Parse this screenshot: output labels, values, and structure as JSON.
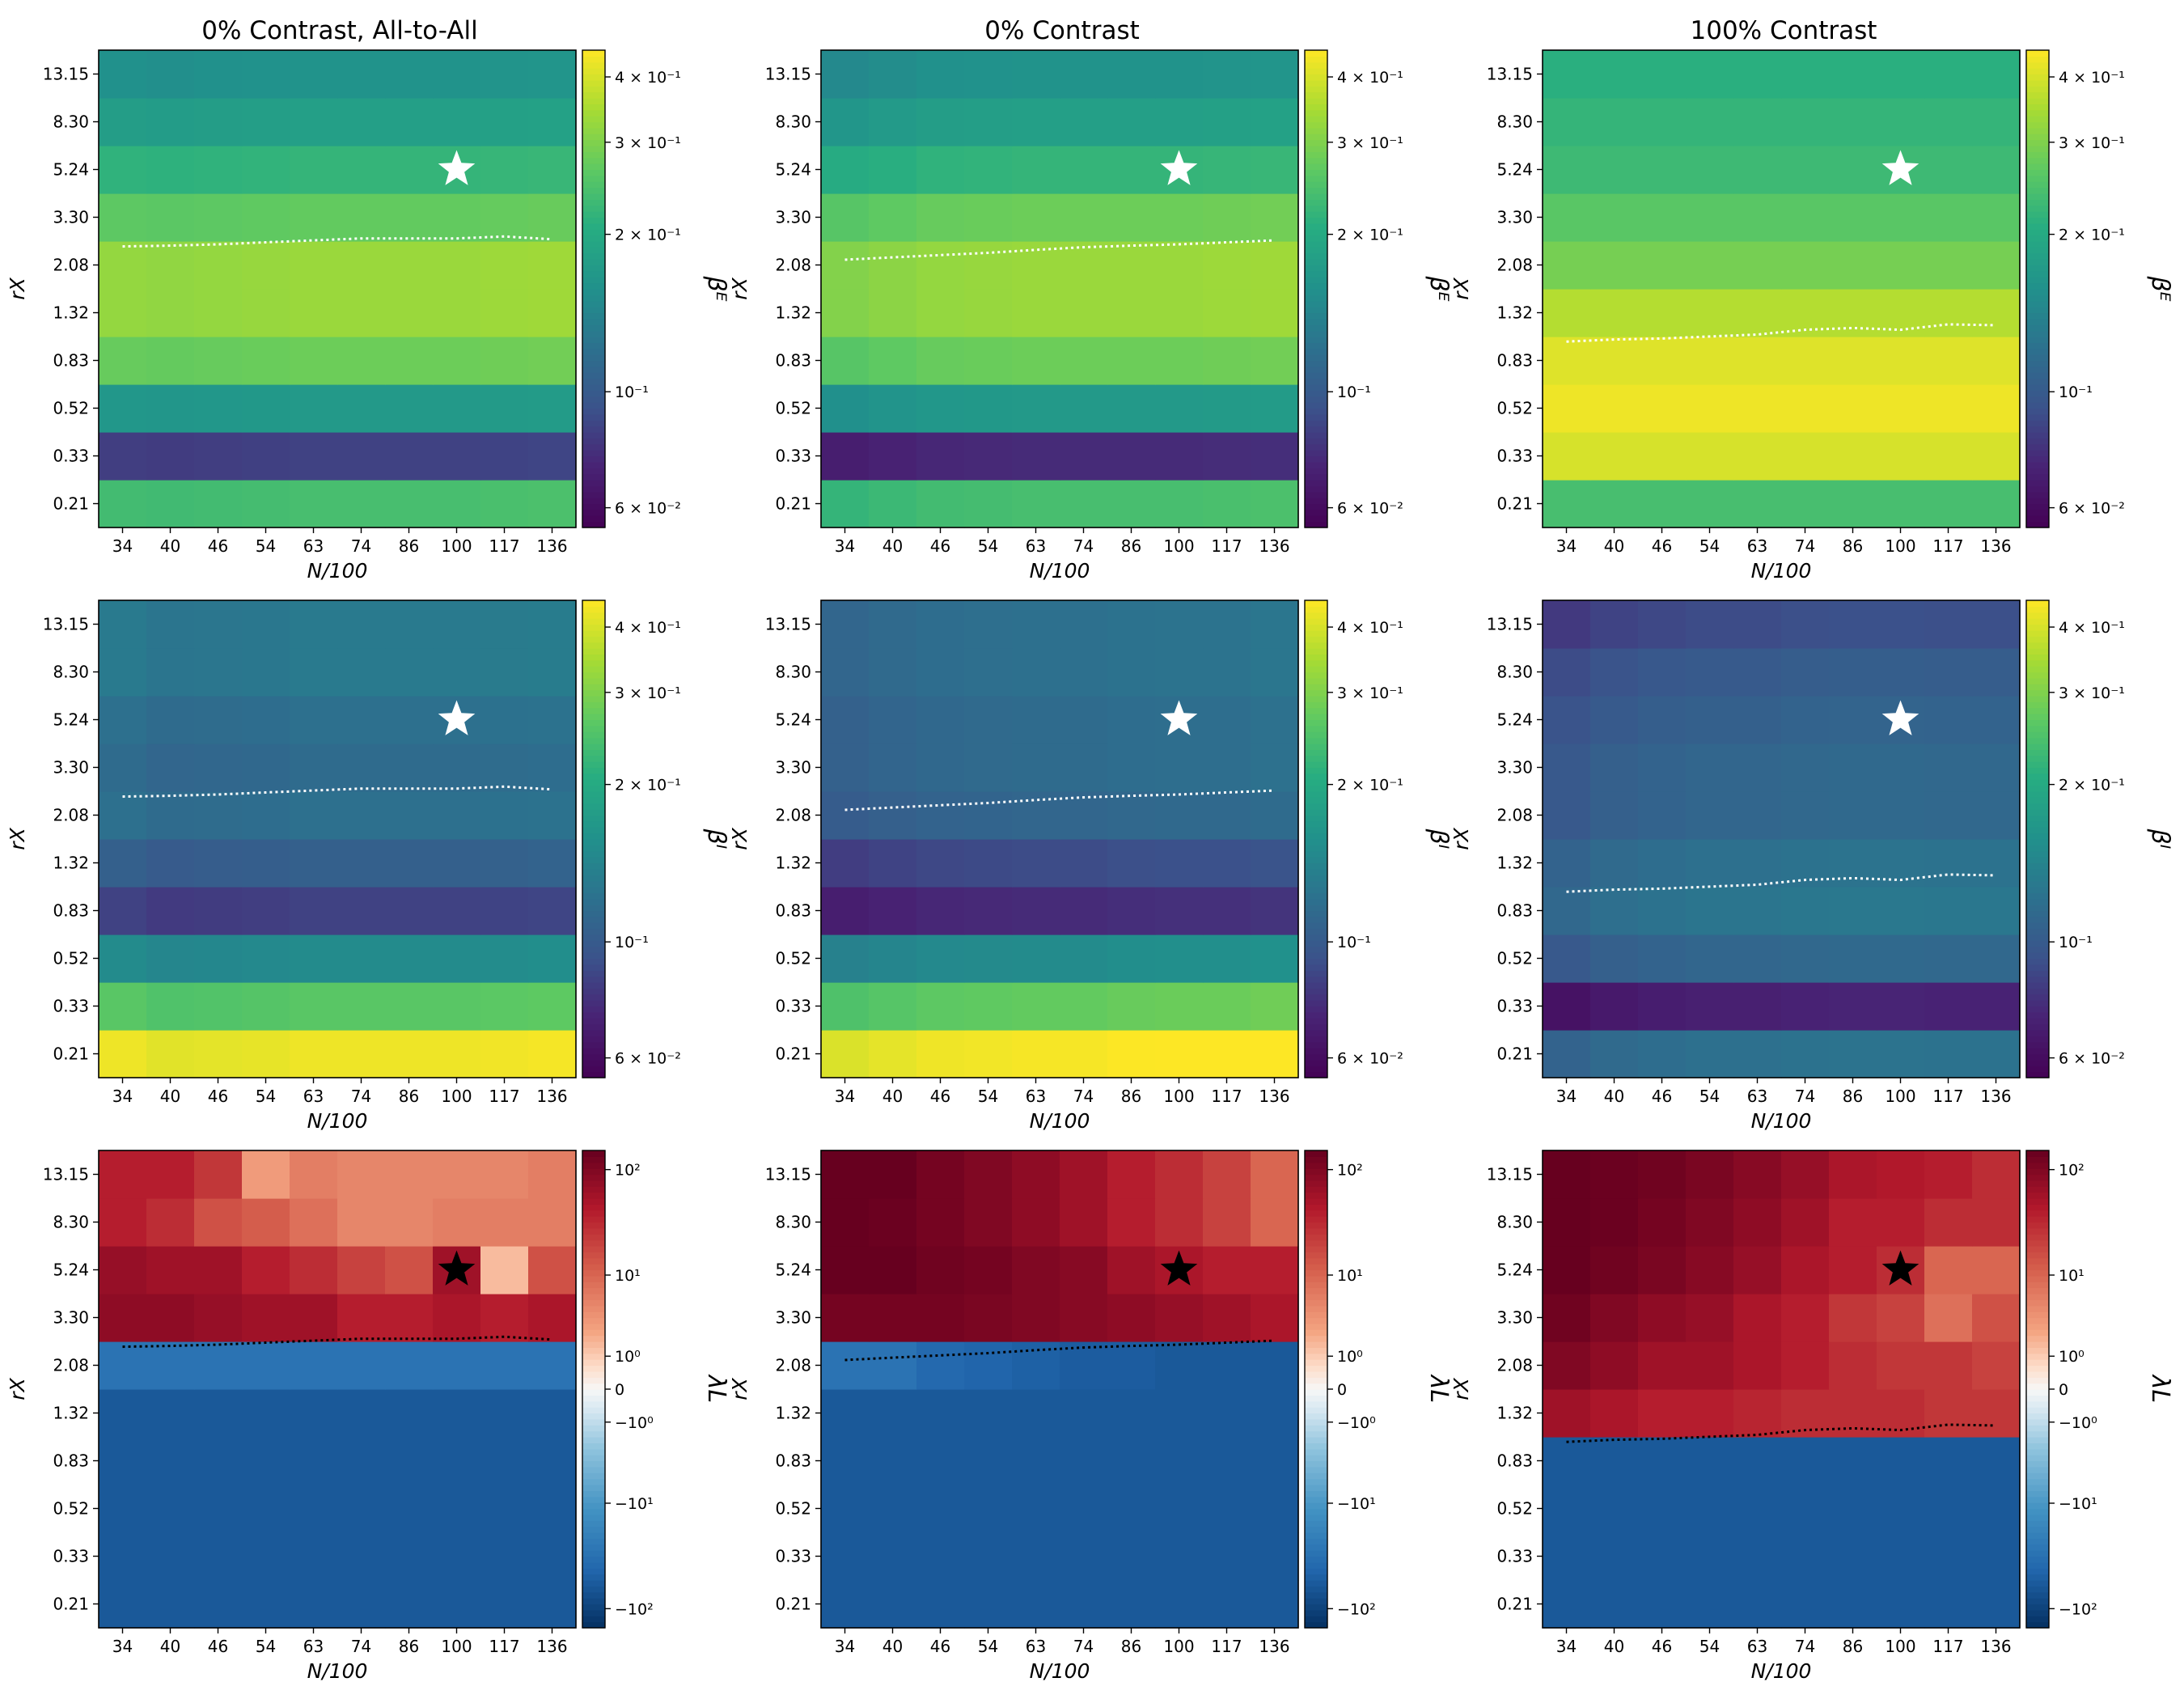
{
  "figure": {
    "columns": [
      {
        "title": "0% Contrast, All-to-All"
      },
      {
        "title": "0% Contrast"
      },
      {
        "title": "100% Contrast"
      }
    ],
    "rows": [
      {
        "quantity": "beta_E",
        "cbar_label": "βᴱ",
        "cbar_scale": "log",
        "cmap": "viridis",
        "cbar_ticks": [
          "6 × 10⁻²",
          "10⁻¹",
          "2 × 10⁻¹",
          "3 × 10⁻¹",
          "4 × 10⁻¹"
        ],
        "cbar_tick_values": [
          0.06,
          0.1,
          0.2,
          0.3,
          0.4
        ],
        "cbar_range": [
          0.055,
          0.45
        ]
      },
      {
        "quantity": "beta_I",
        "cbar_label": "βᴵ",
        "cbar_scale": "log",
        "cmap": "viridis",
        "cbar_ticks": [
          "6 × 10⁻²",
          "10⁻¹",
          "2 × 10⁻¹",
          "3 × 10⁻¹",
          "4 × 10⁻¹"
        ],
        "cbar_tick_values": [
          0.06,
          0.1,
          0.2,
          0.3,
          0.4
        ],
        "cbar_range": [
          0.055,
          0.45
        ]
      },
      {
        "quantity": "lambda_L",
        "cbar_label": "λL",
        "cbar_scale": "symlog",
        "cmap": "RdBu_r",
        "cbar_ticks": [
          "10²",
          "10¹",
          "10⁰",
          "0",
          "−10⁰",
          "−10¹",
          "−10²"
        ],
        "cbar_tick_values": [
          100,
          10,
          1,
          0,
          -1,
          -10,
          -100
        ],
        "cbar_range": [
          -150,
          150
        ]
      }
    ],
    "xlabel": "N/100",
    "ylabel": "rX",
    "x_ticks": [
      "34",
      "40",
      "46",
      "54",
      "63",
      "74",
      "86",
      "100",
      "117",
      "136"
    ],
    "y_ticks": [
      "0.21",
      "0.33",
      "0.52",
      "0.83",
      "1.32",
      "2.08",
      "3.30",
      "5.24",
      "8.30",
      "13.15"
    ],
    "star": {
      "x": "100",
      "y": "5.24"
    }
  },
  "chart_data": [
    {
      "type": "heatmap",
      "panel": "row1-col1",
      "title": "0% Contrast, All-to-All",
      "row_values": [
        0.24,
        0.085,
        0.17,
        0.28,
        0.33,
        0.33,
        0.27,
        0.22,
        0.18,
        0.16
      ],
      "col_factor": [
        0.98,
        0.97,
        0.98,
        0.99,
        1.0,
        1.0,
        1.0,
        1.0,
        1.01,
        1.02
      ],
      "boundary": [
        2.5,
        2.52,
        2.55,
        2.6,
        2.65,
        2.7,
        2.7,
        2.7,
        2.75,
        2.68
      ]
    },
    {
      "type": "heatmap",
      "panel": "row1-col2",
      "title": "0% Contrast",
      "row_values": [
        0.24,
        0.075,
        0.17,
        0.28,
        0.33,
        0.33,
        0.28,
        0.22,
        0.18,
        0.16
      ],
      "col_factor": [
        0.92,
        0.95,
        0.98,
        0.99,
        1.0,
        1.0,
        1.0,
        1.0,
        1.01,
        1.02
      ],
      "boundary": [
        2.2,
        2.25,
        2.3,
        2.35,
        2.42,
        2.48,
        2.52,
        2.55,
        2.6,
        2.65
      ]
    },
    {
      "type": "heatmap",
      "panel": "row1-col3",
      "title": "100% Contrast",
      "row_values": [
        0.24,
        0.4,
        0.43,
        0.41,
        0.36,
        0.29,
        0.26,
        0.23,
        0.22,
        0.21
      ],
      "col_factor": [
        1.0,
        1.0,
        1.0,
        1.0,
        1.0,
        1.0,
        1.0,
        1.0,
        1.0,
        1.0
      ],
      "boundary": [
        1.0,
        1.02,
        1.03,
        1.05,
        1.07,
        1.12,
        1.14,
        1.12,
        1.18,
        1.17
      ]
    },
    {
      "type": "heatmap",
      "panel": "row2-col1",
      "title": "",
      "row_values": [
        0.43,
        0.26,
        0.15,
        0.085,
        0.105,
        0.12,
        0.115,
        0.12,
        0.13,
        0.13
      ],
      "col_factor": [
        1.0,
        0.96,
        0.97,
        0.98,
        1.0,
        1.0,
        1.0,
        1.0,
        1.01,
        1.02
      ],
      "boundary": [
        2.5,
        2.52,
        2.55,
        2.6,
        2.65,
        2.7,
        2.7,
        2.7,
        2.75,
        2.68
      ]
    },
    {
      "type": "heatmap",
      "panel": "row2-col2",
      "title": "",
      "row_values": [
        0.44,
        0.27,
        0.15,
        0.075,
        0.09,
        0.11,
        0.115,
        0.115,
        0.12,
        0.12
      ],
      "col_factor": [
        0.92,
        0.95,
        0.98,
        0.99,
        1.0,
        1.0,
        1.02,
        1.03,
        1.03,
        1.05
      ],
      "boundary": [
        2.2,
        2.25,
        2.3,
        2.35,
        2.42,
        2.48,
        2.52,
        2.55,
        2.6,
        2.65
      ]
    },
    {
      "type": "heatmap",
      "panel": "row2-col3",
      "title": "",
      "row_values": [
        0.12,
        0.07,
        0.11,
        0.125,
        0.12,
        0.11,
        0.11,
        0.105,
        0.1,
        0.09
      ],
      "col_factor": [
        0.9,
        0.95,
        0.98,
        1.0,
        1.0,
        1.02,
        1.03,
        1.03,
        1.02,
        1.02
      ],
      "boundary": [
        1.0,
        1.02,
        1.03,
        1.05,
        1.07,
        1.12,
        1.14,
        1.12,
        1.18,
        1.17
      ]
    },
    {
      "type": "heatmap",
      "panel": "row3-col1",
      "title": "",
      "values": [
        [
          -60,
          -60,
          -60,
          -60,
          -60,
          -60,
          -60,
          -60,
          -60,
          -60
        ],
        [
          -60,
          -60,
          -60,
          -60,
          -60,
          -60,
          -60,
          -60,
          -60,
          -60
        ],
        [
          -60,
          -60,
          -60,
          -60,
          -60,
          -60,
          -60,
          -60,
          -60,
          -60
        ],
        [
          -60,
          -60,
          -60,
          -60,
          -60,
          -60,
          -60,
          -60,
          -60,
          -60
        ],
        [
          -60,
          -60,
          -60,
          -60,
          -60,
          -60,
          -60,
          -60,
          -60,
          -60
        ],
        [
          -30,
          -30,
          -30,
          -30,
          -30,
          -30,
          -30,
          -30,
          -30,
          -30
        ],
        [
          80,
          80,
          70,
          60,
          60,
          40,
          40,
          50,
          40,
          50
        ],
        [
          70,
          60,
          60,
          40,
          30,
          20,
          15,
          60,
          1.5,
          15
        ],
        [
          40,
          30,
          15,
          12,
          8,
          5,
          5,
          6,
          6,
          6
        ],
        [
          40,
          40,
          25,
          3,
          6,
          5,
          5,
          5,
          5,
          6
        ]
      ],
      "boundary": [
        2.5,
        2.52,
        2.55,
        2.6,
        2.65,
        2.7,
        2.7,
        2.7,
        2.75,
        2.68
      ]
    },
    {
      "type": "heatmap",
      "panel": "row3-col2",
      "title": "",
      "values": [
        [
          -60,
          -60,
          -60,
          -60,
          -60,
          -60,
          -60,
          -60,
          -60,
          -60
        ],
        [
          -60,
          -60,
          -60,
          -60,
          -60,
          -60,
          -60,
          -60,
          -60,
          -60
        ],
        [
          -60,
          -60,
          -60,
          -60,
          -60,
          -60,
          -60,
          -60,
          -60,
          -60
        ],
        [
          -60,
          -60,
          -60,
          -60,
          -60,
          -60,
          -60,
          -60,
          -60,
          -60
        ],
        [
          -60,
          -60,
          -60,
          -60,
          -60,
          -60,
          -60,
          -60,
          -60,
          -60
        ],
        [
          -30,
          -30,
          -40,
          -45,
          -50,
          -55,
          -55,
          -60,
          -60,
          -60
        ],
        [
          120,
          120,
          120,
          110,
          100,
          90,
          80,
          70,
          60,
          50
        ],
        [
          150,
          150,
          130,
          120,
          100,
          90,
          60,
          50,
          40,
          40
        ],
        [
          150,
          140,
          120,
          100,
          80,
          60,
          40,
          30,
          20,
          10
        ],
        [
          150,
          150,
          120,
          100,
          80,
          60,
          40,
          30,
          20,
          10
        ]
      ],
      "boundary": [
        2.2,
        2.25,
        2.3,
        2.35,
        2.42,
        2.48,
        2.52,
        2.55,
        2.6,
        2.65
      ]
    },
    {
      "type": "heatmap",
      "panel": "row3-col3",
      "title": "",
      "values": [
        [
          -60,
          -60,
          -60,
          -60,
          -60,
          -60,
          -60,
          -60,
          -60,
          -60
        ],
        [
          -60,
          -60,
          -60,
          -60,
          -60,
          -60,
          -60,
          -60,
          -60,
          -60
        ],
        [
          -60,
          -60,
          -60,
          -60,
          -60,
          -60,
          -60,
          -60,
          -60,
          -60
        ],
        [
          -60,
          -60,
          -60,
          -60,
          -60,
          -60,
          -60,
          -60,
          -60,
          -60
        ],
        [
          60,
          50,
          40,
          40,
          35,
          30,
          30,
          30,
          25,
          25
        ],
        [
          100,
          80,
          60,
          60,
          50,
          40,
          30,
          25,
          25,
          20
        ],
        [
          130,
          100,
          80,
          70,
          50,
          40,
          25,
          20,
          8,
          15
        ],
        [
          150,
          130,
          110,
          90,
          70,
          50,
          40,
          30,
          10,
          10
        ],
        [
          150,
          140,
          120,
          100,
          80,
          60,
          40,
          40,
          30,
          30
        ],
        [
          150,
          140,
          130,
          110,
          90,
          70,
          50,
          45,
          40,
          30
        ]
      ],
      "boundary": [
        1.0,
        1.02,
        1.03,
        1.05,
        1.07,
        1.12,
        1.14,
        1.12,
        1.18,
        1.17
      ]
    }
  ]
}
